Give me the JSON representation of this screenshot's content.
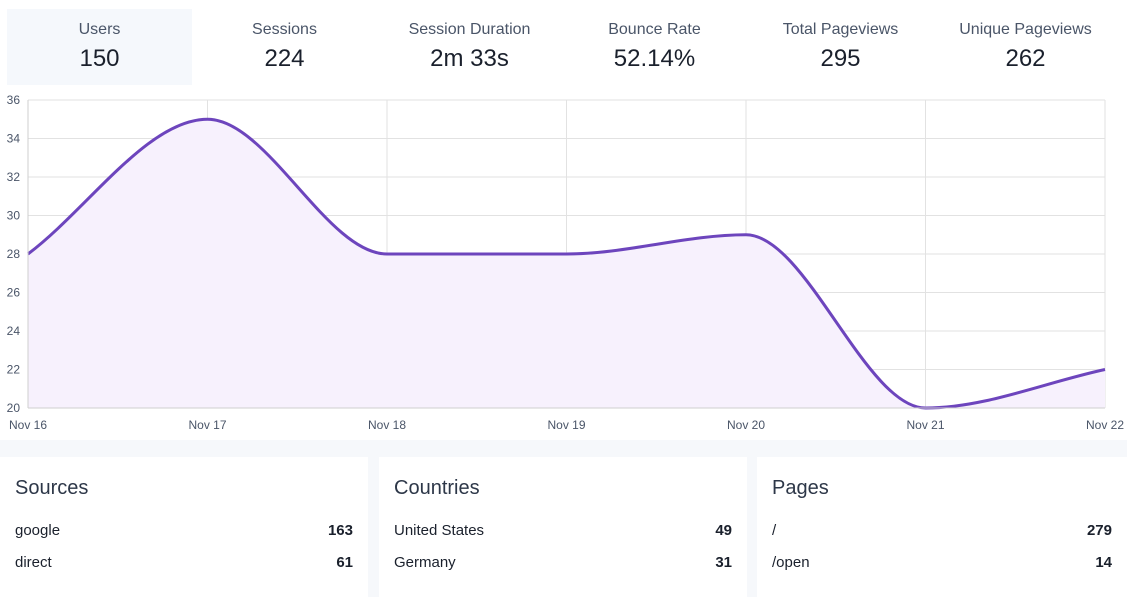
{
  "metrics": [
    {
      "label": "Users",
      "value": "150"
    },
    {
      "label": "Sessions",
      "value": "224"
    },
    {
      "label": "Session Duration",
      "value": "2m 33s"
    },
    {
      "label": "Bounce Rate",
      "value": "52.14%"
    },
    {
      "label": "Total Pageviews",
      "value": "295"
    },
    {
      "label": "Unique Pageviews",
      "value": "262"
    }
  ],
  "colors": {
    "line": "#6d45bd",
    "fill": "#f7f1fd",
    "grid": "#e2e2e2"
  },
  "chart_data": {
    "type": "area",
    "title": "",
    "xlabel": "",
    "ylabel": "",
    "categories": [
      "Nov 16",
      "Nov 17",
      "Nov 18",
      "Nov 19",
      "Nov 20",
      "Nov 21",
      "Nov 22"
    ],
    "series": [
      {
        "name": "Users",
        "values": [
          28,
          35,
          28,
          28,
          29,
          20,
          22
        ]
      }
    ],
    "y_ticks": [
      20,
      22,
      24,
      26,
      28,
      30,
      32,
      34,
      36
    ],
    "ylim": [
      20,
      36
    ],
    "grid": true,
    "legend": "none"
  },
  "panels": {
    "sources": {
      "title": "Sources",
      "rows": [
        {
          "label": "google",
          "value": "163"
        },
        {
          "label": "direct",
          "value": "61"
        }
      ]
    },
    "countries": {
      "title": "Countries",
      "rows": [
        {
          "label": "United States",
          "value": "49"
        },
        {
          "label": "Germany",
          "value": "31"
        }
      ]
    },
    "pages": {
      "title": "Pages",
      "rows": [
        {
          "label": "/",
          "value": "279"
        },
        {
          "label": "/open",
          "value": "14"
        }
      ]
    }
  }
}
